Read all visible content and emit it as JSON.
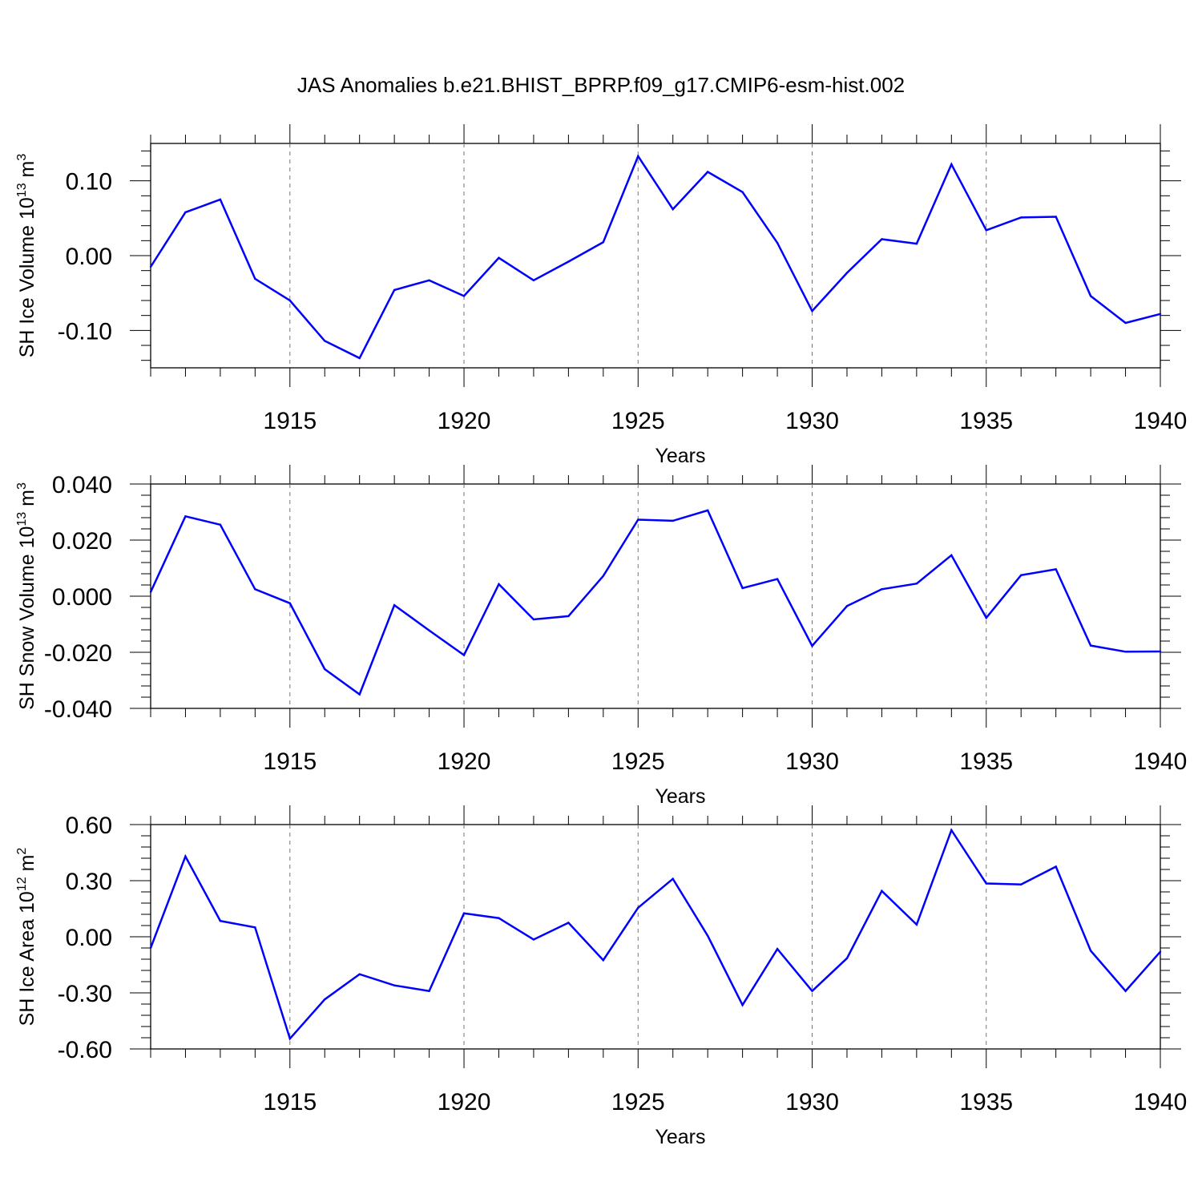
{
  "title": "JAS Anomalies b.e21.BHIST_BPRP.f09_g17.CMIP6-esm-hist.002",
  "chart_data": [
    {
      "type": "line",
      "ylabel": {
        "main": "SH Ice Volume 10",
        "sup1": "13",
        "mid": " m",
        "sup2": "3"
      },
      "xlabel": "Years",
      "xlim": [
        1911,
        1940
      ],
      "ylim": [
        -0.15,
        0.15
      ],
      "xticks": [
        1915,
        1920,
        1925,
        1930,
        1935,
        1940
      ],
      "yticks": [
        -0.1,
        0.0,
        0.1
      ],
      "ytick_labels": [
        "-0.10",
        "0.00",
        "0.10"
      ],
      "grid": "dashed vertical lines at major x ticks",
      "color": "#0000ff",
      "x": [
        1911,
        1912,
        1913,
        1914,
        1915,
        1916,
        1917,
        1918,
        1919,
        1920,
        1921,
        1922,
        1923,
        1924,
        1925,
        1926,
        1927,
        1928,
        1929,
        1930,
        1931,
        1932,
        1933,
        1934,
        1935,
        1936,
        1937,
        1938,
        1939,
        1940
      ],
      "values": [
        -0.015,
        0.058,
        0.075,
        -0.031,
        -0.06,
        -0.114,
        -0.137,
        -0.046,
        -0.033,
        -0.054,
        -0.003,
        -0.033,
        -0.008,
        0.018,
        0.133,
        0.062,
        0.112,
        0.085,
        0.017,
        -0.074,
        -0.023,
        0.022,
        0.016,
        0.122,
        0.034,
        0.051,
        0.052,
        -0.054,
        -0.09,
        -0.078
      ]
    },
    {
      "type": "line",
      "ylabel": {
        "main": "SH Snow Volume 10",
        "sup1": "13",
        "mid": " m",
        "sup2": "3"
      },
      "xlabel": "Years",
      "xlim": [
        1911,
        1940
      ],
      "ylim": [
        -0.04,
        0.04
      ],
      "xticks": [
        1915,
        1920,
        1925,
        1930,
        1935,
        1940
      ],
      "yticks": [
        -0.04,
        -0.02,
        0.0,
        0.02,
        0.04
      ],
      "ytick_labels": [
        "-0.040",
        "-0.020",
        "0.000",
        "0.020",
        "0.040"
      ],
      "grid": "dashed vertical lines at major x ticks",
      "color": "#0000ff",
      "x": [
        1911,
        1912,
        1913,
        1914,
        1915,
        1916,
        1917,
        1918,
        1919,
        1920,
        1921,
        1922,
        1923,
        1924,
        1925,
        1926,
        1927,
        1928,
        1929,
        1930,
        1931,
        1932,
        1933,
        1934,
        1935,
        1936,
        1937,
        1938,
        1939,
        1940
      ],
      "values": [
        0.0015,
        0.0285,
        0.0255,
        0.0025,
        -0.0025,
        -0.026,
        -0.035,
        -0.0032,
        -0.0122,
        -0.021,
        0.0043,
        -0.0083,
        -0.0071,
        0.0072,
        0.0273,
        0.0269,
        0.0306,
        0.0029,
        0.0061,
        -0.0177,
        -0.0035,
        0.0025,
        0.0045,
        0.0146,
        -0.0077,
        0.0075,
        0.0096,
        -0.0176,
        -0.0198,
        -0.0197
      ]
    },
    {
      "type": "line",
      "ylabel": {
        "main": "SH Ice Area 10",
        "sup1": "12",
        "mid": " m",
        "sup2": "2"
      },
      "xlabel": "Years",
      "xlim": [
        1911,
        1940
      ],
      "ylim": [
        -0.6,
        0.6
      ],
      "xticks": [
        1915,
        1920,
        1925,
        1930,
        1935,
        1940
      ],
      "yticks": [
        -0.6,
        -0.3,
        0.0,
        0.3,
        0.6
      ],
      "ytick_labels": [
        "-0.60",
        "-0.30",
        "0.00",
        "0.30",
        "0.60"
      ],
      "grid": "dashed vertical lines at major x ticks",
      "color": "#0000ff",
      "x": [
        1911,
        1912,
        1913,
        1914,
        1915,
        1916,
        1917,
        1918,
        1919,
        1920,
        1921,
        1922,
        1923,
        1924,
        1925,
        1926,
        1927,
        1928,
        1929,
        1930,
        1931,
        1932,
        1933,
        1934,
        1935,
        1936,
        1937,
        1938,
        1939,
        1940
      ],
      "values": [
        -0.06,
        0.43,
        0.085,
        0.05,
        -0.545,
        -0.335,
        -0.2,
        -0.26,
        -0.29,
        0.125,
        0.1,
        -0.015,
        0.075,
        -0.125,
        0.155,
        0.31,
        0.005,
        -0.365,
        -0.065,
        -0.29,
        -0.115,
        0.245,
        0.065,
        0.57,
        0.285,
        0.28,
        0.375,
        -0.075,
        -0.29,
        -0.08
      ]
    }
  ]
}
